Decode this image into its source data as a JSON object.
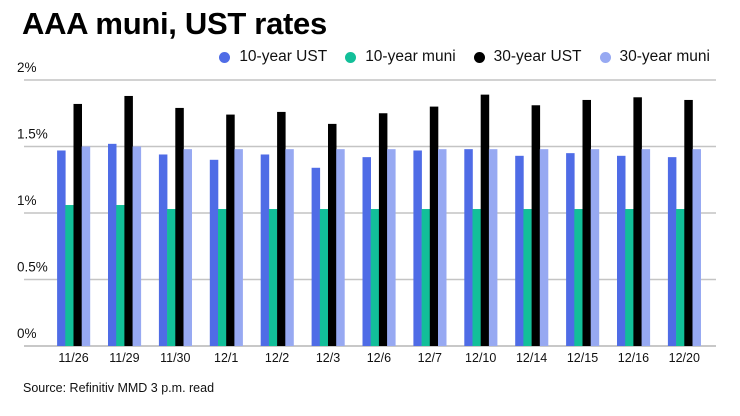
{
  "chart_data": {
    "type": "bar",
    "title": "AAA muni, UST rates",
    "xlabel": "",
    "ylabel": "",
    "ylim": [
      0,
      2
    ],
    "yticks": [
      {
        "value": 0,
        "label": "0%"
      },
      {
        "value": 0.5,
        "label": "0.5%"
      },
      {
        "value": 1,
        "label": "1%"
      },
      {
        "value": 1.5,
        "label": "1.5%"
      },
      {
        "value": 2,
        "label": "2%"
      }
    ],
    "grid": true,
    "legend_position": "top-right",
    "categories": [
      "11/26",
      "11/29",
      "11/30",
      "12/1",
      "12/2",
      "12/3",
      "12/6",
      "12/7",
      "12/10",
      "12/14",
      "12/15",
      "12/16",
      "12/20"
    ],
    "series": [
      {
        "name": "10-year UST",
        "color": "#4f6ce6",
        "values": [
          1.47,
          1.52,
          1.44,
          1.4,
          1.44,
          1.34,
          1.42,
          1.47,
          1.48,
          1.43,
          1.45,
          1.43,
          1.42
        ]
      },
      {
        "name": "10-year muni",
        "color": "#12bf99",
        "values": [
          1.06,
          1.06,
          1.03,
          1.03,
          1.03,
          1.03,
          1.03,
          1.03,
          1.03,
          1.03,
          1.03,
          1.03,
          1.03
        ]
      },
      {
        "name": "30-year UST",
        "color": "#000000",
        "values": [
          1.82,
          1.88,
          1.79,
          1.74,
          1.76,
          1.67,
          1.75,
          1.8,
          1.89,
          1.81,
          1.85,
          1.87,
          1.85
        ]
      },
      {
        "name": "30-year muni",
        "color": "#97a9f2",
        "values": [
          1.5,
          1.5,
          1.48,
          1.48,
          1.48,
          1.48,
          1.48,
          1.48,
          1.48,
          1.48,
          1.48,
          1.48,
          1.48
        ]
      }
    ],
    "source": "Source: Refinitiv MMD 3 p.m. read"
  },
  "colors": {
    "gridline": "#c4c4c4",
    "baseline": "#b5b5b5"
  }
}
